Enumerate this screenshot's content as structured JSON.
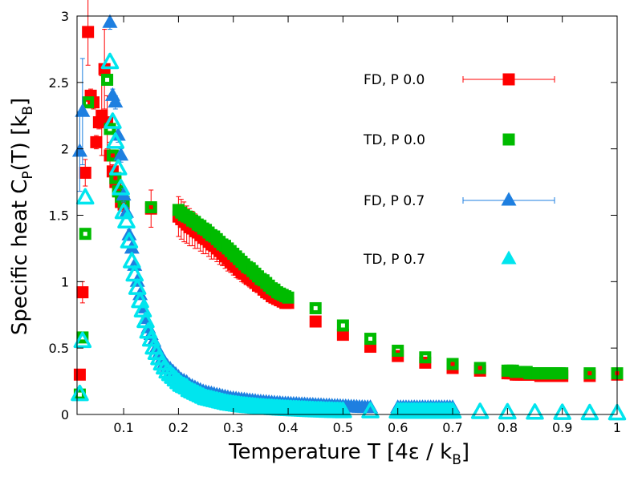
{
  "chart_data": {
    "type": "scatter",
    "title": "",
    "xlabel": "Temperature T [4ε / k",
    "xlabel_sub": "B",
    "xlabel_end": "]",
    "ylabel": "Specific heat C",
    "ylabel_sub1": "P",
    "ylabel_mid": "(T) [k",
    "ylabel_sub2": "B",
    "ylabel_end": "]",
    "xlim": [
      0.015,
      1.0
    ],
    "ylim": [
      0,
      3
    ],
    "x_ticks": [
      0.1,
      0.2,
      0.3,
      0.4,
      0.5,
      0.6,
      0.7,
      0.8,
      0.9,
      1.0
    ],
    "x_tick_labels": [
      "0.1",
      "0.2",
      "0.3",
      "0.4",
      "0.5",
      "0.6",
      "0.7",
      "0.8",
      "0.9",
      "1"
    ],
    "y_ticks": [
      0,
      0.5,
      1,
      1.5,
      2,
      2.5,
      3
    ],
    "y_tick_labels": [
      "0",
      "0.5",
      "1",
      "1.5",
      "2",
      "2.5",
      "3"
    ],
    "grid": false,
    "legend_position": "top-right",
    "series": [
      {
        "name": "FD,  P 0.0",
        "marker": "square",
        "style": "filled",
        "color": "#ff0000",
        "errorbars": true,
        "x": [
          0.02,
          0.025,
          0.03,
          0.035,
          0.04,
          0.045,
          0.05,
          0.055,
          0.06,
          0.065,
          0.07,
          0.075,
          0.08,
          0.085,
          0.09,
          0.095,
          0.1,
          0.15,
          0.2,
          0.205,
          0.21,
          0.215,
          0.22,
          0.225,
          0.23,
          0.235,
          0.24,
          0.245,
          0.25,
          0.255,
          0.26,
          0.265,
          0.27,
          0.275,
          0.28,
          0.285,
          0.29,
          0.295,
          0.3,
          0.305,
          0.31,
          0.315,
          0.32,
          0.325,
          0.33,
          0.335,
          0.34,
          0.345,
          0.35,
          0.355,
          0.36,
          0.365,
          0.37,
          0.375,
          0.38,
          0.385,
          0.39,
          0.395,
          0.4,
          0.45,
          0.5,
          0.55,
          0.6,
          0.65,
          0.7,
          0.75,
          0.8,
          0.805,
          0.81,
          0.815,
          0.82,
          0.825,
          0.83,
          0.835,
          0.84,
          0.845,
          0.85,
          0.855,
          0.86,
          0.865,
          0.87,
          0.875,
          0.88,
          0.885,
          0.89,
          0.895,
          0.9,
          0.95,
          1.0
        ],
        "y": [
          0.3,
          0.92,
          1.82,
          2.88,
          2.4,
          2.35,
          2.05,
          2.2,
          2.25,
          2.6,
          2.2,
          1.95,
          1.83,
          1.75,
          1.68,
          1.6,
          1.58,
          1.55,
          1.49,
          1.47,
          1.45,
          1.43,
          1.41,
          1.4,
          1.38,
          1.37,
          1.35,
          1.33,
          1.32,
          1.3,
          1.28,
          1.27,
          1.25,
          1.23,
          1.21,
          1.19,
          1.17,
          1.15,
          1.13,
          1.11,
          1.09,
          1.07,
          1.06,
          1.04,
          1.02,
          1.01,
          0.99,
          0.97,
          0.96,
          0.94,
          0.92,
          0.91,
          0.89,
          0.88,
          0.87,
          0.86,
          0.85,
          0.84,
          0.84,
          0.7,
          0.6,
          0.51,
          0.44,
          0.39,
          0.35,
          0.33,
          0.31,
          0.31,
          0.31,
          0.3,
          0.3,
          0.3,
          0.3,
          0.3,
          0.3,
          0.3,
          0.3,
          0.3,
          0.29,
          0.29,
          0.29,
          0.29,
          0.29,
          0.29,
          0.29,
          0.29,
          0.29,
          0.29,
          0.3
        ],
        "yerr": [
          0.02,
          0.08,
          0.1,
          0.25,
          0.05,
          0.05,
          0.05,
          0.05,
          0.3,
          0.3,
          0.2,
          0.1,
          0.05,
          0.05,
          0.05,
          0.05,
          0.05,
          0.14,
          0.15,
          0.15,
          0.15,
          0.14,
          0.14,
          0.13,
          0.13,
          0.12,
          0.12,
          0.12,
          0.11,
          0.11,
          0.11,
          0.1,
          0.1,
          0.1,
          0.09,
          0.09,
          0.09,
          0.08,
          0.08,
          0.08,
          0.07,
          0.07,
          0.07,
          0.06,
          0.06,
          0.06,
          0.05,
          0.05,
          0.05,
          0.04,
          0.04,
          0.04,
          0.04,
          0.03,
          0.03,
          0.03,
          0.03,
          0.03,
          0.03,
          0.02,
          0.02,
          0.02,
          0.02,
          0.02,
          0.02,
          0.02,
          0.02,
          0.02,
          0.02,
          0.02,
          0.02,
          0.02,
          0.02,
          0.02,
          0.02,
          0.02,
          0.02,
          0.02,
          0.02,
          0.02,
          0.02,
          0.02,
          0.02,
          0.02,
          0.02,
          0.02,
          0.02,
          0.02,
          0.02
        ]
      },
      {
        "name": "TD,  P 0.0",
        "marker": "square",
        "style": "hollow",
        "color": "#00bb00",
        "errorbars": false,
        "x": [
          0.02,
          0.025,
          0.03,
          0.035,
          0.07,
          0.075,
          0.08,
          0.085,
          0.09,
          0.095,
          0.1,
          0.15,
          0.2,
          0.205,
          0.21,
          0.215,
          0.22,
          0.225,
          0.23,
          0.235,
          0.24,
          0.245,
          0.25,
          0.255,
          0.26,
          0.265,
          0.27,
          0.275,
          0.28,
          0.285,
          0.29,
          0.295,
          0.3,
          0.305,
          0.31,
          0.315,
          0.32,
          0.325,
          0.33,
          0.335,
          0.34,
          0.345,
          0.35,
          0.355,
          0.36,
          0.365,
          0.37,
          0.375,
          0.38,
          0.385,
          0.39,
          0.395,
          0.4,
          0.45,
          0.5,
          0.55,
          0.6,
          0.65,
          0.7,
          0.75,
          0.8,
          0.805,
          0.81,
          0.815,
          0.82,
          0.825,
          0.83,
          0.835,
          0.84,
          0.845,
          0.85,
          0.855,
          0.86,
          0.865,
          0.87,
          0.875,
          0.88,
          0.885,
          0.89,
          0.895,
          0.9,
          0.95,
          1.0
        ],
        "y": [
          0.15,
          0.58,
          1.36,
          2.35,
          2.52,
          2.15,
          1.95,
          1.78,
          1.68,
          1.64,
          1.6,
          1.56,
          1.54,
          1.52,
          1.5,
          1.49,
          1.48,
          1.46,
          1.45,
          1.43,
          1.42,
          1.4,
          1.39,
          1.37,
          1.35,
          1.34,
          1.32,
          1.3,
          1.28,
          1.27,
          1.25,
          1.23,
          1.21,
          1.19,
          1.17,
          1.15,
          1.13,
          1.11,
          1.1,
          1.08,
          1.06,
          1.04,
          1.02,
          1.01,
          0.99,
          0.97,
          0.95,
          0.94,
          0.92,
          0.91,
          0.9,
          0.89,
          0.88,
          0.8,
          0.67,
          0.57,
          0.48,
          0.43,
          0.38,
          0.35,
          0.33,
          0.33,
          0.33,
          0.32,
          0.32,
          0.32,
          0.32,
          0.32,
          0.31,
          0.31,
          0.31,
          0.31,
          0.31,
          0.31,
          0.31,
          0.31,
          0.31,
          0.31,
          0.31,
          0.31,
          0.31,
          0.31,
          0.31
        ]
      },
      {
        "name": "FD,  P 0.7",
        "marker": "triangle",
        "style": "filled",
        "color": "#1e7fe0",
        "errorbars": true,
        "x": [
          0.02,
          0.025,
          0.075,
          0.08,
          0.085,
          0.09,
          0.095,
          0.1,
          0.105,
          0.11,
          0.115,
          0.12,
          0.125,
          0.13,
          0.135,
          0.14,
          0.145,
          0.15,
          0.155,
          0.16,
          0.165,
          0.17,
          0.175,
          0.18,
          0.185,
          0.19,
          0.195,
          0.2,
          0.205,
          0.21,
          0.215,
          0.22,
          0.225,
          0.23,
          0.235,
          0.24,
          0.245,
          0.25,
          0.255,
          0.26,
          0.265,
          0.27,
          0.275,
          0.28,
          0.285,
          0.29,
          0.295,
          0.3,
          0.305,
          0.31,
          0.315,
          0.32,
          0.325,
          0.33,
          0.335,
          0.34,
          0.345,
          0.35,
          0.355,
          0.36,
          0.365,
          0.37,
          0.375,
          0.38,
          0.385,
          0.39,
          0.395,
          0.4,
          0.405,
          0.41,
          0.415,
          0.42,
          0.425,
          0.43,
          0.435,
          0.44,
          0.445,
          0.45,
          0.455,
          0.46,
          0.465,
          0.47,
          0.475,
          0.48,
          0.485,
          0.49,
          0.495,
          0.5,
          0.505,
          0.51,
          0.515,
          0.52,
          0.525,
          0.53,
          0.535,
          0.54,
          0.545,
          0.55,
          0.6,
          0.605,
          0.61,
          0.615,
          0.62,
          0.625,
          0.63,
          0.635,
          0.64,
          0.645,
          0.65,
          0.655,
          0.66,
          0.665,
          0.67,
          0.675,
          0.68,
          0.685,
          0.69,
          0.695,
          0.7
        ],
        "y": [
          1.98,
          2.28,
          2.95,
          2.4,
          2.35,
          2.1,
          1.95,
          1.65,
          1.52,
          1.35,
          1.25,
          1.12,
          1.0,
          0.9,
          0.8,
          0.72,
          0.65,
          0.6,
          0.55,
          0.5,
          0.46,
          0.42,
          0.39,
          0.36,
          0.34,
          0.32,
          0.3,
          0.28,
          0.26,
          0.25,
          0.24,
          0.22,
          0.21,
          0.2,
          0.19,
          0.18,
          0.17,
          0.165,
          0.16,
          0.155,
          0.15,
          0.145,
          0.14,
          0.135,
          0.13,
          0.125,
          0.12,
          0.118,
          0.115,
          0.112,
          0.11,
          0.108,
          0.105,
          0.102,
          0.1,
          0.098,
          0.095,
          0.093,
          0.091,
          0.09,
          0.088,
          0.086,
          0.085,
          0.083,
          0.082,
          0.08,
          0.079,
          0.078,
          0.077,
          0.076,
          0.075,
          0.074,
          0.073,
          0.072,
          0.071,
          0.07,
          0.069,
          0.068,
          0.067,
          0.066,
          0.065,
          0.064,
          0.063,
          0.062,
          0.061,
          0.06,
          0.059,
          0.058,
          0.057,
          0.056,
          0.055,
          0.054,
          0.053,
          0.052,
          0.051,
          0.05,
          0.05,
          0.05,
          0.05,
          0.05,
          0.05,
          0.05,
          0.05,
          0.05,
          0.05,
          0.05,
          0.05,
          0.05,
          0.05,
          0.05,
          0.05,
          0.05,
          0.05,
          0.05,
          0.05,
          0.05,
          0.05,
          0.05,
          0.05
        ],
        "yerr": [
          0.3,
          0.4,
          0.05,
          0.05,
          0.05,
          0.05,
          0.05,
          0.05,
          0.04,
          0.04,
          0.03,
          0.03,
          0.03,
          0.03,
          0.02,
          0.02,
          0.02,
          0.02,
          0.02,
          0.02,
          0.02,
          0.02,
          0.02,
          0.02,
          0.02,
          0.02,
          0.02,
          0.02,
          0.02,
          0.02,
          0.02,
          0.02,
          0.02,
          0.02,
          0.02,
          0.02,
          0.02,
          0.02,
          0.02,
          0.02,
          0.02,
          0.02,
          0.02,
          0.02,
          0.02,
          0.02,
          0.02,
          0.02,
          0.02,
          0.02,
          0.02,
          0.02,
          0.02,
          0.02,
          0.02,
          0.02,
          0.02,
          0.02,
          0.02,
          0.02,
          0.02,
          0.02,
          0.02,
          0.02,
          0.02,
          0.02,
          0.02,
          0.02,
          0.02,
          0.02,
          0.02,
          0.02,
          0.02,
          0.02,
          0.02,
          0.02,
          0.02,
          0.02,
          0.02,
          0.02,
          0.02,
          0.02,
          0.02,
          0.02,
          0.02,
          0.02,
          0.02,
          0.02,
          0.02,
          0.02,
          0.02,
          0.02,
          0.02,
          0.02,
          0.02,
          0.02,
          0.02,
          0.02,
          0.02,
          0.02,
          0.02,
          0.02,
          0.02,
          0.02,
          0.02,
          0.02,
          0.02,
          0.02,
          0.02,
          0.02,
          0.02,
          0.02,
          0.02,
          0.02,
          0.02,
          0.02,
          0.02,
          0.02,
          0.02
        ]
      },
      {
        "name": "TD,  P 0.7",
        "marker": "triangle",
        "style": "hollow",
        "color": "#00e5ee",
        "errorbars": false,
        "x": [
          0.02,
          0.025,
          0.03,
          0.075,
          0.08,
          0.085,
          0.09,
          0.095,
          0.1,
          0.105,
          0.11,
          0.115,
          0.12,
          0.125,
          0.13,
          0.135,
          0.14,
          0.145,
          0.15,
          0.155,
          0.16,
          0.165,
          0.17,
          0.175,
          0.18,
          0.185,
          0.19,
          0.195,
          0.2,
          0.205,
          0.21,
          0.215,
          0.22,
          0.225,
          0.23,
          0.235,
          0.24,
          0.245,
          0.25,
          0.255,
          0.26,
          0.265,
          0.27,
          0.275,
          0.28,
          0.285,
          0.29,
          0.295,
          0.3,
          0.305,
          0.31,
          0.315,
          0.32,
          0.325,
          0.33,
          0.335,
          0.34,
          0.345,
          0.35,
          0.355,
          0.36,
          0.365,
          0.37,
          0.375,
          0.38,
          0.385,
          0.39,
          0.395,
          0.4,
          0.405,
          0.41,
          0.415,
          0.42,
          0.425,
          0.43,
          0.435,
          0.44,
          0.445,
          0.45,
          0.455,
          0.46,
          0.465,
          0.47,
          0.475,
          0.48,
          0.485,
          0.49,
          0.495,
          0.5,
          0.55,
          0.6,
          0.605,
          0.61,
          0.615,
          0.62,
          0.625,
          0.63,
          0.635,
          0.64,
          0.645,
          0.65,
          0.655,
          0.66,
          0.665,
          0.67,
          0.675,
          0.68,
          0.685,
          0.69,
          0.695,
          0.7,
          0.75,
          0.8,
          0.85,
          0.9,
          0.95,
          1.0
        ],
        "y": [
          0.15,
          0.55,
          1.63,
          2.65,
          2.2,
          2.05,
          1.85,
          1.7,
          1.52,
          1.45,
          1.3,
          1.15,
          1.05,
          0.95,
          0.85,
          0.78,
          0.7,
          0.62,
          0.56,
          0.5,
          0.46,
          0.42,
          0.38,
          0.35,
          0.32,
          0.3,
          0.28,
          0.26,
          0.24,
          0.22,
          0.21,
          0.2,
          0.18,
          0.17,
          0.16,
          0.15,
          0.14,
          0.13,
          0.12,
          0.115,
          0.11,
          0.105,
          0.1,
          0.095,
          0.09,
          0.085,
          0.08,
          0.077,
          0.074,
          0.071,
          0.068,
          0.065,
          0.063,
          0.061,
          0.059,
          0.057,
          0.055,
          0.053,
          0.051,
          0.05,
          0.048,
          0.047,
          0.045,
          0.044,
          0.043,
          0.041,
          0.04,
          0.039,
          0.038,
          0.037,
          0.036,
          0.035,
          0.034,
          0.033,
          0.032,
          0.031,
          0.03,
          0.029,
          0.028,
          0.028,
          0.027,
          0.026,
          0.025,
          0.025,
          0.024,
          0.023,
          0.023,
          0.022,
          0.022,
          0.02,
          0.018,
          0.018,
          0.018,
          0.018,
          0.018,
          0.018,
          0.018,
          0.018,
          0.018,
          0.018,
          0.018,
          0.018,
          0.018,
          0.018,
          0.018,
          0.018,
          0.018,
          0.018,
          0.018,
          0.018,
          0.018,
          0.015,
          0.012,
          0.01,
          0.008,
          0.006,
          0.005
        ]
      }
    ]
  }
}
